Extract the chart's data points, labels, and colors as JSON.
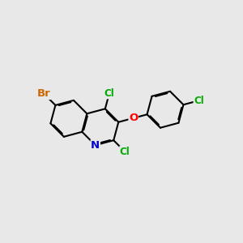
{
  "background_color": "#e8e8e8",
  "bond_color": "#000000",
  "bond_width": 1.5,
  "atoms": {
    "N": {
      "color": "#0000cc"
    },
    "O": {
      "color": "#ff0000"
    },
    "Br": {
      "color": "#cc6600"
    },
    "Cl": {
      "color": "#00aa00"
    }
  },
  "font_size": 9.5,
  "fig_size": [
    3.0,
    3.0
  ],
  "dpi": 100
}
